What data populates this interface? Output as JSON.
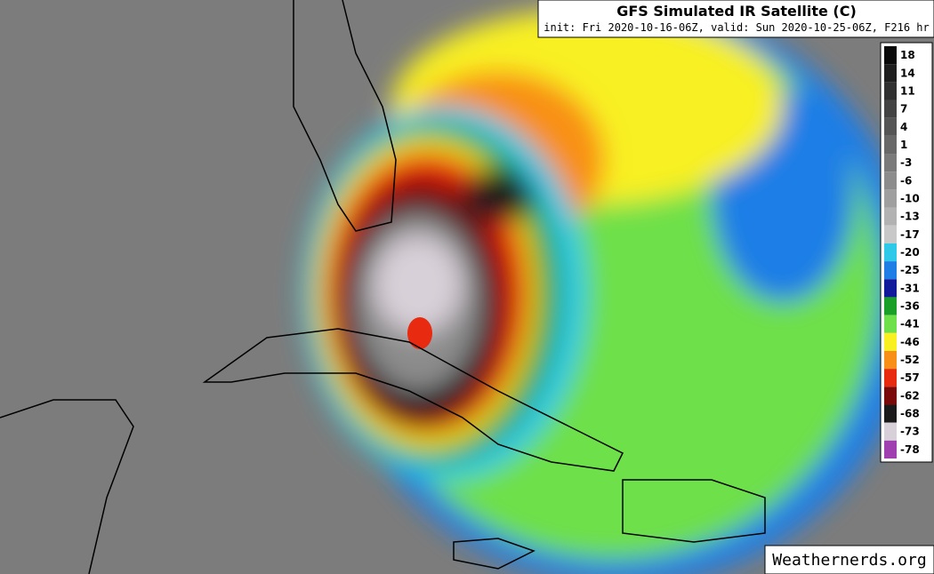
{
  "header": {
    "title": "GFS Simulated IR Satellite (C)",
    "subtitle": "init: Fri 2020-10-16-06Z, valid: Sun 2020-10-25-06Z, F216 hr"
  },
  "colorbar": {
    "labels": [
      18,
      14,
      11,
      7,
      4,
      1,
      -3,
      -6,
      -10,
      -13,
      -17,
      -20,
      -25,
      -31,
      -36,
      -41,
      -46,
      -52,
      -57,
      -62,
      -68,
      -73,
      -78
    ],
    "colors": [
      "#0a0a0a",
      "#1e1e1e",
      "#303030",
      "#434343",
      "#555555",
      "#686868",
      "#7a7a7a",
      "#8c8c8c",
      "#9f9f9f",
      "#b2b2b2",
      "#c8c8c8",
      "#2ec8e8",
      "#1e7ee6",
      "#101a9a",
      "#18a028",
      "#6ee04a",
      "#f8f020",
      "#f89018",
      "#e82a10",
      "#7a0a0a",
      "#1a1a1a",
      "#d8d0d8",
      "#a040b0"
    ]
  },
  "watermark": "Weathernerds.org"
}
